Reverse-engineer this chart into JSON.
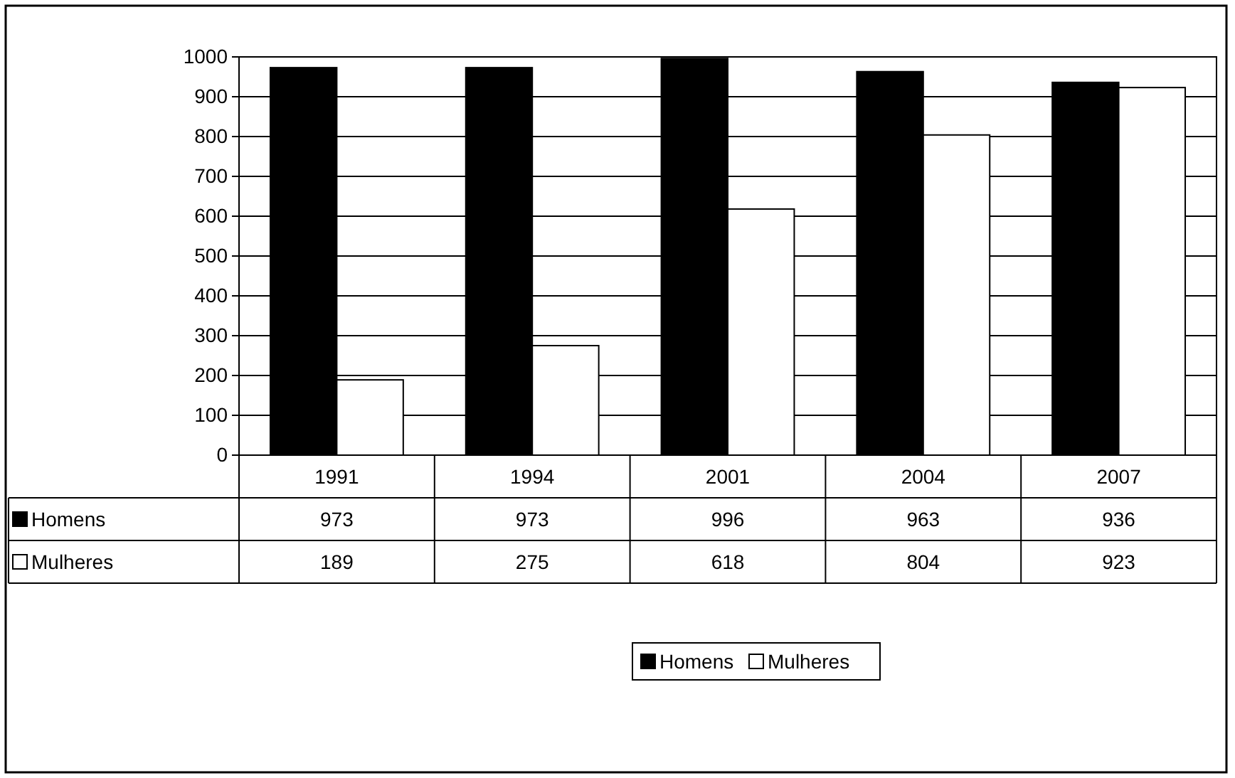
{
  "chart_data": {
    "type": "bar",
    "categories": [
      "1991",
      "1994",
      "2001",
      "2004",
      "2007"
    ],
    "series": [
      {
        "name": "Homens",
        "color": "#000000",
        "values": [
          973,
          973,
          996,
          963,
          936
        ]
      },
      {
        "name": "Mulheres",
        "color": "#ffffff",
        "values": [
          189,
          275,
          618,
          804,
          923
        ]
      }
    ],
    "ylim": [
      0,
      1000
    ],
    "yticks": [
      0,
      100,
      200,
      300,
      400,
      500,
      600,
      700,
      800,
      900,
      1000
    ],
    "grid": "y",
    "legend": "bottom",
    "data_labels": true
  }
}
